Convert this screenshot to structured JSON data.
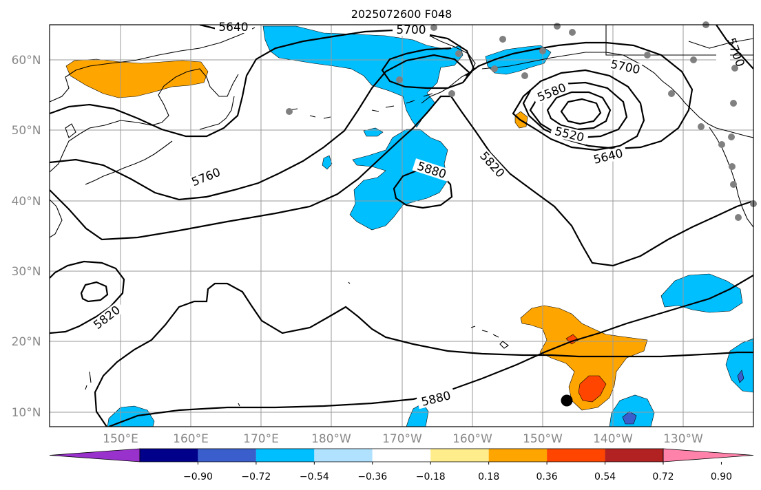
{
  "title": "2025072600 F048",
  "map": {
    "lon_labels": [
      "150°E",
      "160°E",
      "170°E",
      "180°W",
      "170°W",
      "160°W",
      "150°W",
      "140°W",
      "130°W"
    ],
    "lat_labels": [
      "60°N",
      "50°N",
      "40°N",
      "30°N",
      "20°N",
      "10°N"
    ],
    "contour_labels": [
      "5640",
      "5700",
      "5700",
      "5700",
      "5580",
      "5520",
      "5640",
      "5760",
      "5820",
      "5880",
      "5820",
      "5880"
    ],
    "colors": {
      "contour": "#000000",
      "grid": "#9a9a9a",
      "station_dot": "#808080",
      "storm_marker": "#000000"
    }
  },
  "colorbar": {
    "ticks": [
      "−0.90",
      "−0.72",
      "−0.54",
      "−0.36",
      "−0.18",
      "0.18",
      "0.36",
      "0.54",
      "0.72",
      "0.90"
    ],
    "colors": [
      "#9932cc",
      "#00008b",
      "#3a5fcd",
      "#00bfff",
      "#b0e2ff",
      "#ffffff",
      "#ffec8b",
      "#ffa500",
      "#ff4500",
      "#b22222",
      "#ff82ab"
    ]
  }
}
